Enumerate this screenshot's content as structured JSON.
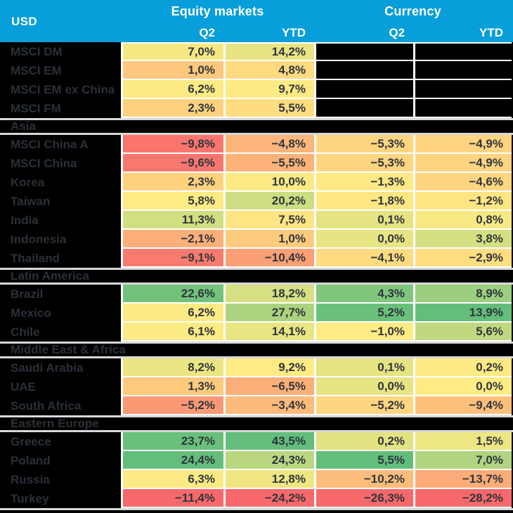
{
  "header": {
    "corner_label": "USD",
    "groups": [
      "Equity markets",
      "Currency"
    ],
    "sub_labels": [
      "Q2",
      "YTD",
      "Q2",
      "YTD"
    ]
  },
  "colors": {
    "header_bg": "#089EDA",
    "header_text": "#FFFFFF",
    "label_text": "#2A3038",
    "value_text": "#2F353C",
    "background": "#000000",
    "cell_gap": "#FFFFFF",
    "section_rule": "#D8D8D8",
    "masked_cell": "#000000"
  },
  "chart_data": {
    "type": "table",
    "subtype": "heatmap",
    "corner_label": "USD",
    "column_groups": [
      "Equity markets",
      "Currency"
    ],
    "columns": [
      "Equity Q2",
      "Equity YTD",
      "Currency Q2",
      "Currency YTD"
    ],
    "value_format": "percent, comma decimal, one decimal place",
    "color_scale": {
      "min_color": "#F8696B",
      "mid_color": "#FFEB84",
      "max_color": "#63BE7B",
      "midpoint": "per-column median",
      "note": "3-color scale computed per column; null values shown as black cells"
    },
    "sections": [
      {
        "title": null,
        "rows": [
          {
            "label": "MSCI DM",
            "values": [
              7.0,
              14.2,
              null,
              null
            ]
          },
          {
            "label": "MSCI EM",
            "values": [
              1.0,
              4.8,
              null,
              null
            ]
          },
          {
            "label": "MSCI EM ex China",
            "values": [
              6.2,
              9.7,
              null,
              null
            ]
          },
          {
            "label": "MSCI FM",
            "values": [
              2.3,
              5.5,
              null,
              null
            ]
          }
        ]
      },
      {
        "title": "Asia",
        "rows": [
          {
            "label": "MSCI China A",
            "values": [
              -9.8,
              -4.8,
              -5.3,
              -4.9
            ]
          },
          {
            "label": "MSCI China",
            "values": [
              -9.6,
              -5.5,
              -5.3,
              -4.9
            ]
          },
          {
            "label": "Korea",
            "values": [
              2.3,
              10.0,
              -1.3,
              -4.6
            ]
          },
          {
            "label": "Taiwan",
            "values": [
              5.8,
              20.2,
              -1.8,
              -1.2
            ]
          },
          {
            "label": "India",
            "values": [
              11.3,
              7.5,
              0.1,
              0.8
            ]
          },
          {
            "label": "Indonesia",
            "values": [
              -2.1,
              1.0,
              0.0,
              3.8
            ]
          },
          {
            "label": "Thailand",
            "values": [
              -9.1,
              -10.4,
              -4.1,
              -2.9
            ]
          }
        ]
      },
      {
        "title": "Latin America",
        "rows": [
          {
            "label": "Brazil",
            "values": [
              22.6,
              18.2,
              4.3,
              8.9
            ]
          },
          {
            "label": "Mexico",
            "values": [
              6.2,
              27.7,
              5.2,
              13.9
            ]
          },
          {
            "label": "Chile",
            "values": [
              6.1,
              14.1,
              -1.0,
              5.6
            ]
          }
        ]
      },
      {
        "title": "Middle East & Africa",
        "rows": [
          {
            "label": "Saudi Arabia",
            "values": [
              8.2,
              9.2,
              0.1,
              0.2
            ]
          },
          {
            "label": "UAE",
            "values": [
              1.3,
              -6.5,
              0.0,
              0.0
            ]
          },
          {
            "label": "South Africa",
            "values": [
              -5.2,
              -3.4,
              -5.2,
              -9.4
            ]
          }
        ]
      },
      {
        "title": "Eastern Europe",
        "rows": [
          {
            "label": "Greece",
            "values": [
              23.7,
              43.5,
              0.2,
              1.5
            ]
          },
          {
            "label": "Poland",
            "values": [
              24.4,
              24.3,
              5.5,
              7.0
            ]
          },
          {
            "label": "Russia",
            "values": [
              6.3,
              12.8,
              -10.2,
              -13.7
            ]
          },
          {
            "label": "Turkey",
            "values": [
              -11.4,
              -24.2,
              -26.3,
              -28.2
            ]
          }
        ]
      }
    ]
  }
}
